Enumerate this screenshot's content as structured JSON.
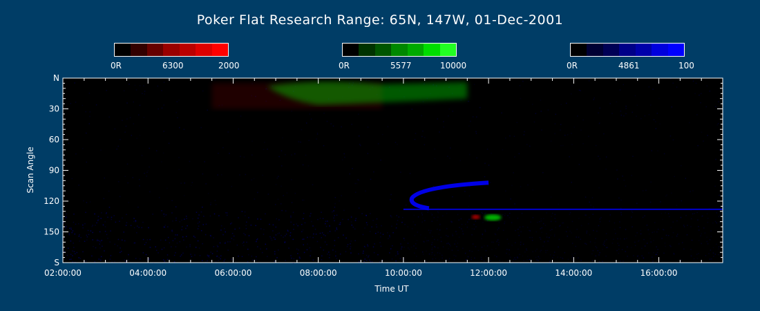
{
  "title": "Poker Flat Research Range: 65N, 147W, 01-Dec-2001",
  "colorbars": [
    {
      "left": "0R",
      "mid": "6300",
      "right": "2000",
      "colors": [
        "#000000",
        "#330000",
        "#660000",
        "#990000",
        "#bb0000",
        "#dd0000",
        "#ff0000"
      ]
    },
    {
      "left": "0R",
      "mid": "5577",
      "right": "10000",
      "colors": [
        "#000000",
        "#003300",
        "#005500",
        "#008800",
        "#00aa00",
        "#00dd00",
        "#22ff22"
      ]
    },
    {
      "left": "0R",
      "mid": "4861",
      "right": "100",
      "colors": [
        "#000000",
        "#000033",
        "#000055",
        "#000088",
        "#0000aa",
        "#0000dd",
        "#0000ff"
      ]
    }
  ],
  "chart_data": {
    "type": "heatmap",
    "xlabel": "Time UT",
    "ylabel": "Scan Angle",
    "x_ticks": [
      "02:00:00",
      "04:00:00",
      "06:00:00",
      "08:00:00",
      "10:00:00",
      "12:00:00",
      "14:00:00",
      "16:00:00"
    ],
    "x_tick_hours": [
      2,
      4,
      6,
      8,
      10,
      12,
      14,
      16
    ],
    "xlim_hours": [
      2.0,
      17.5
    ],
    "y_ticks": [
      "N",
      "30",
      "60",
      "90",
      "120",
      "150",
      "S"
    ],
    "y_tick_values": [
      0,
      30,
      60,
      90,
      120,
      150,
      180
    ],
    "ylim": [
      0,
      180
    ],
    "features": [
      {
        "channel": "6300",
        "color": "#ff0000",
        "description": "weak red emission near north horizon",
        "x_hours": [
          5.5,
          9.5
        ],
        "y_angle": [
          5,
          30
        ]
      },
      {
        "channel": "5577",
        "color": "#00ff00",
        "description": "green auroral arc near north horizon",
        "x_hours": [
          7.0,
          11.5
        ],
        "y_angle": [
          0,
          25
        ]
      },
      {
        "channel": "4861",
        "color": "#0000ff",
        "description": "blue arc (moon track)",
        "x_hours": [
          10.2,
          12.0
        ],
        "y_angle": [
          100,
          125
        ]
      },
      {
        "channel": "4861",
        "color": "#0000ff",
        "description": "blue horizontal line",
        "x_hours": [
          10.0,
          17.5
        ],
        "y_angle": [
          128,
          128
        ]
      },
      {
        "channel": "6300",
        "color": "#ff0000",
        "description": "red spot",
        "x_hours": [
          11.6,
          11.8
        ],
        "y_angle": [
          134,
          137
        ]
      },
      {
        "channel": "5577",
        "color": "#00ff00",
        "description": "green spot",
        "x_hours": [
          11.9,
          12.3
        ],
        "y_angle": [
          133,
          139
        ]
      }
    ]
  }
}
